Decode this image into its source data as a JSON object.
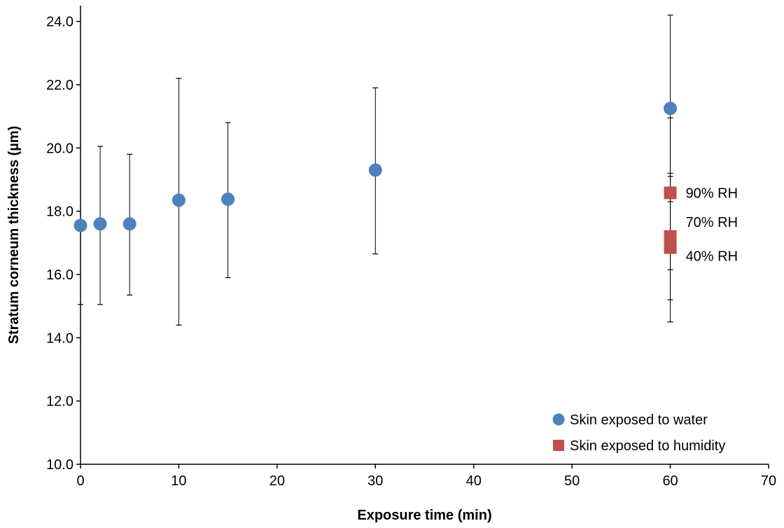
{
  "chart_data": {
    "type": "scatter",
    "title": "",
    "xlabel": "Exposure time (min)",
    "ylabel": "Stratum corneum thickness (µm)",
    "xlim": [
      0,
      70
    ],
    "ylim": [
      10,
      24.5
    ],
    "x_ticks": [
      0,
      10,
      20,
      30,
      40,
      50,
      60,
      70
    ],
    "x_tick_labels": [
      "0",
      "10",
      "20",
      "30",
      "40",
      "50",
      "60",
      "70"
    ],
    "y_ticks": [
      10,
      12,
      14,
      16,
      18,
      20,
      22,
      24
    ],
    "y_tick_labels": [
      "10.0",
      "12.0",
      "14.0",
      "16.0",
      "18.0",
      "20.0",
      "22.0",
      "24.0"
    ],
    "grid": false,
    "legend_position": "bottom-right",
    "series": [
      {
        "name": "Skin exposed to water",
        "marker": "circle",
        "color": "#4f81bd",
        "points": [
          {
            "x": 0,
            "y": 17.55,
            "err_low": 15.05,
            "err_high": 17.55
          },
          {
            "x": 2,
            "y": 17.6,
            "err_low": 15.05,
            "err_high": 20.05
          },
          {
            "x": 5,
            "y": 17.6,
            "err_low": 15.35,
            "err_high": 19.8
          },
          {
            "x": 10,
            "y": 18.35,
            "err_low": 14.4,
            "err_high": 22.2
          },
          {
            "x": 15,
            "y": 18.38,
            "err_low": 15.9,
            "err_high": 20.8
          },
          {
            "x": 30,
            "y": 19.3,
            "err_low": 16.65,
            "err_high": 21.9
          },
          {
            "x": 60,
            "y": 21.25,
            "err_low": 18.3,
            "err_high": 24.2
          }
        ]
      },
      {
        "name": "Skin exposed to humidity",
        "marker": "square",
        "color": "#c0504d",
        "points": [
          {
            "x": 60,
            "y": 18.58,
            "err_low": 16.15,
            "err_high": 20.95,
            "label": "90% RH"
          },
          {
            "x": 60,
            "y": 17.2,
            "err_low": 15.2,
            "err_high": 19.2,
            "label": "70% RH"
          },
          {
            "x": 60,
            "y": 16.85,
            "err_low": 14.5,
            "err_high": 19.1,
            "label": "40% RH"
          }
        ]
      }
    ]
  }
}
